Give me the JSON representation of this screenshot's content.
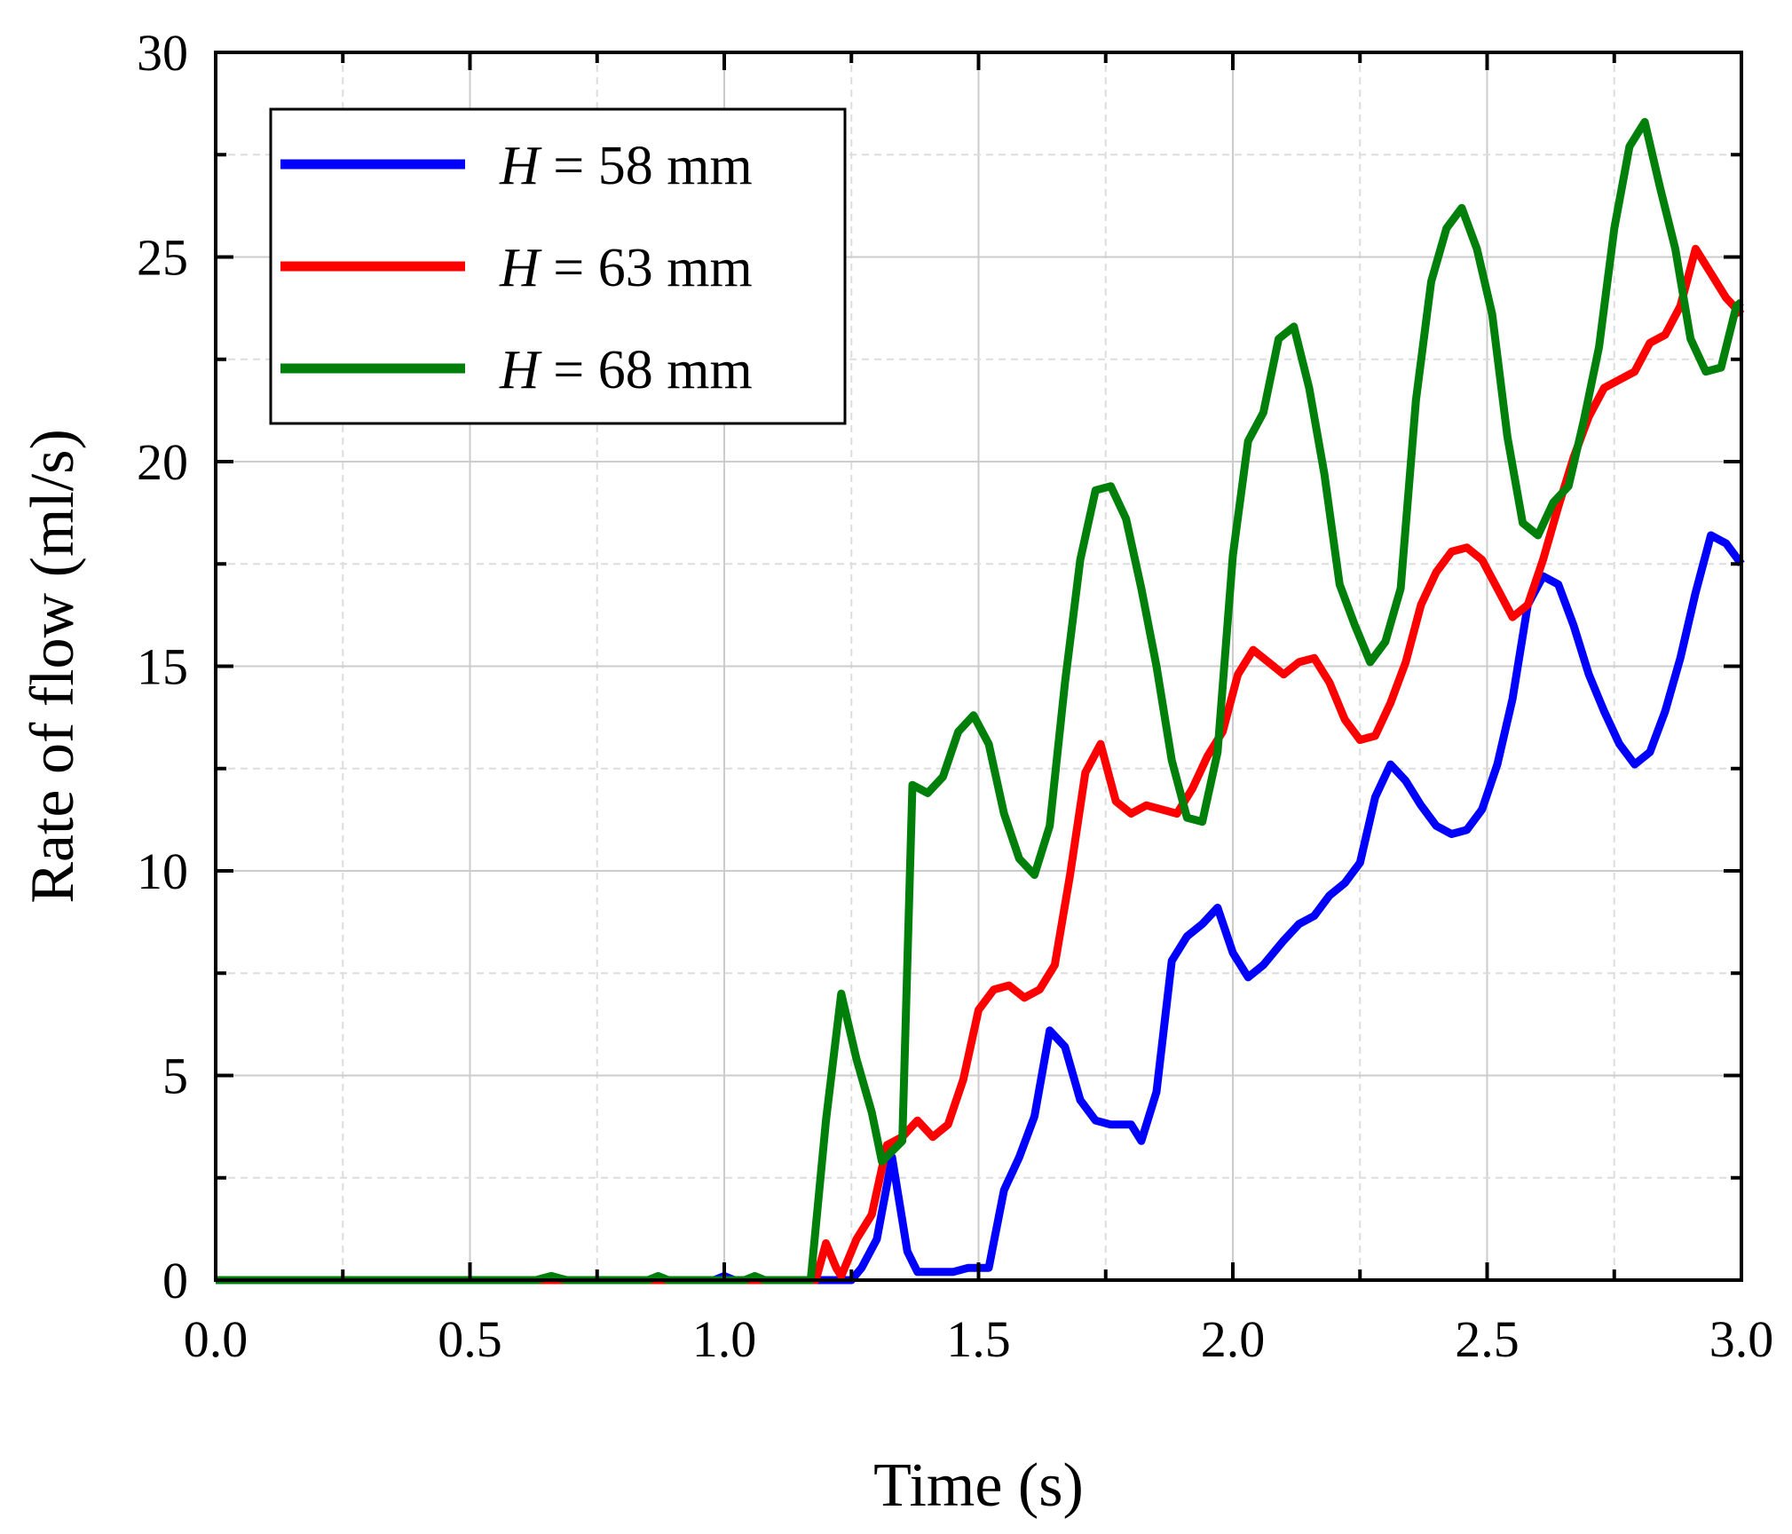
{
  "chart_data": {
    "type": "line",
    "title": "",
    "xlabel": "Time (s)",
    "ylabel": "Rate of flow (ml/s)",
    "xlim": [
      0,
      3
    ],
    "ylim": [
      0,
      30
    ],
    "x_ticks": [
      "0.0",
      "0.5",
      "1.0",
      "1.5",
      "2.0",
      "2.5",
      "3.0"
    ],
    "y_ticks": [
      "0",
      "5",
      "10",
      "15",
      "20",
      "25",
      "30"
    ],
    "grid": true,
    "legend_position": "top-left",
    "series": [
      {
        "name": "H = 58 mm",
        "var": "H",
        "rest": " = 58 mm",
        "color": "#0000ff",
        "points": [
          [
            0,
            0
          ],
          [
            0.25,
            0
          ],
          [
            0.5,
            0
          ],
          [
            0.75,
            0
          ],
          [
            0.98,
            0
          ],
          [
            1.0,
            0.1
          ],
          [
            1.02,
            0
          ],
          [
            1.1,
            0
          ],
          [
            1.2,
            0
          ],
          [
            1.25,
            0
          ],
          [
            1.27,
            0.3
          ],
          [
            1.3,
            1.0
          ],
          [
            1.33,
            3.0
          ],
          [
            1.36,
            0.7
          ],
          [
            1.38,
            0.2
          ],
          [
            1.42,
            0.2
          ],
          [
            1.45,
            0.2
          ],
          [
            1.48,
            0.3
          ],
          [
            1.52,
            0.3
          ],
          [
            1.55,
            2.2
          ],
          [
            1.58,
            3.0
          ],
          [
            1.61,
            4.0
          ],
          [
            1.64,
            6.1
          ],
          [
            1.67,
            5.7
          ],
          [
            1.7,
            4.4
          ],
          [
            1.73,
            3.9
          ],
          [
            1.76,
            3.8
          ],
          [
            1.8,
            3.8
          ],
          [
            1.82,
            3.4
          ],
          [
            1.85,
            4.6
          ],
          [
            1.88,
            7.8
          ],
          [
            1.91,
            8.4
          ],
          [
            1.94,
            8.7
          ],
          [
            1.97,
            9.1
          ],
          [
            2.0,
            8.0
          ],
          [
            2.03,
            7.4
          ],
          [
            2.06,
            7.7
          ],
          [
            2.1,
            8.3
          ],
          [
            2.13,
            8.7
          ],
          [
            2.16,
            8.9
          ],
          [
            2.19,
            9.4
          ],
          [
            2.22,
            9.7
          ],
          [
            2.25,
            10.2
          ],
          [
            2.28,
            11.8
          ],
          [
            2.31,
            12.6
          ],
          [
            2.34,
            12.2
          ],
          [
            2.37,
            11.6
          ],
          [
            2.4,
            11.1
          ],
          [
            2.43,
            10.9
          ],
          [
            2.46,
            11.0
          ],
          [
            2.49,
            11.5
          ],
          [
            2.52,
            12.6
          ],
          [
            2.55,
            14.2
          ],
          [
            2.58,
            16.5
          ],
          [
            2.61,
            17.2
          ],
          [
            2.64,
            17.0
          ],
          [
            2.67,
            16.0
          ],
          [
            2.7,
            14.8
          ],
          [
            2.73,
            13.9
          ],
          [
            2.76,
            13.1
          ],
          [
            2.79,
            12.6
          ],
          [
            2.82,
            12.9
          ],
          [
            2.85,
            13.9
          ],
          [
            2.88,
            15.2
          ],
          [
            2.91,
            16.8
          ],
          [
            2.94,
            18.2
          ],
          [
            2.97,
            18.0
          ],
          [
            3.0,
            17.5
          ]
        ]
      },
      {
        "name": "H = 63 mm",
        "var": "H",
        "rest": " = 63 mm",
        "color": "#ff0000",
        "points": [
          [
            0,
            0
          ],
          [
            0.5,
            0
          ],
          [
            1.0,
            0
          ],
          [
            1.18,
            0
          ],
          [
            1.2,
            0.9
          ],
          [
            1.22,
            0.3
          ],
          [
            1.23,
            0.1
          ],
          [
            1.26,
            1.0
          ],
          [
            1.29,
            1.6
          ],
          [
            1.32,
            3.3
          ],
          [
            1.35,
            3.5
          ],
          [
            1.38,
            3.9
          ],
          [
            1.41,
            3.5
          ],
          [
            1.44,
            3.8
          ],
          [
            1.47,
            4.9
          ],
          [
            1.5,
            6.6
          ],
          [
            1.53,
            7.1
          ],
          [
            1.56,
            7.2
          ],
          [
            1.59,
            6.9
          ],
          [
            1.62,
            7.1
          ],
          [
            1.65,
            7.7
          ],
          [
            1.68,
            9.9
          ],
          [
            1.71,
            12.4
          ],
          [
            1.74,
            13.1
          ],
          [
            1.77,
            11.7
          ],
          [
            1.8,
            11.4
          ],
          [
            1.83,
            11.6
          ],
          [
            1.86,
            11.5
          ],
          [
            1.89,
            11.4
          ],
          [
            1.92,
            12.0
          ],
          [
            1.95,
            12.8
          ],
          [
            1.98,
            13.4
          ],
          [
            2.01,
            14.8
          ],
          [
            2.04,
            15.4
          ],
          [
            2.07,
            15.1
          ],
          [
            2.1,
            14.8
          ],
          [
            2.13,
            15.1
          ],
          [
            2.16,
            15.2
          ],
          [
            2.19,
            14.6
          ],
          [
            2.22,
            13.7
          ],
          [
            2.25,
            13.2
          ],
          [
            2.28,
            13.3
          ],
          [
            2.31,
            14.1
          ],
          [
            2.34,
            15.1
          ],
          [
            2.37,
            16.5
          ],
          [
            2.4,
            17.3
          ],
          [
            2.43,
            17.8
          ],
          [
            2.46,
            17.9
          ],
          [
            2.49,
            17.6
          ],
          [
            2.52,
            16.9
          ],
          [
            2.55,
            16.2
          ],
          [
            2.58,
            16.5
          ],
          [
            2.61,
            17.6
          ],
          [
            2.64,
            18.9
          ],
          [
            2.67,
            20.1
          ],
          [
            2.7,
            21.1
          ],
          [
            2.73,
            21.8
          ],
          [
            2.76,
            22.0
          ],
          [
            2.79,
            22.2
          ],
          [
            2.82,
            22.9
          ],
          [
            2.85,
            23.1
          ],
          [
            2.88,
            23.8
          ],
          [
            2.91,
            25.2
          ],
          [
            2.94,
            24.6
          ],
          [
            2.97,
            24.0
          ],
          [
            3.0,
            23.6
          ]
        ]
      },
      {
        "name": "H = 68 mm",
        "var": "H",
        "rest": " = 68 mm",
        "color": "#00800a",
        "points": [
          [
            0,
            0
          ],
          [
            0.25,
            0
          ],
          [
            0.5,
            0
          ],
          [
            0.63,
            0
          ],
          [
            0.66,
            0.1
          ],
          [
            0.69,
            0
          ],
          [
            0.85,
            0
          ],
          [
            0.87,
            0.1
          ],
          [
            0.89,
            0
          ],
          [
            1.0,
            0
          ],
          [
            1.04,
            0
          ],
          [
            1.06,
            0.1
          ],
          [
            1.08,
            0
          ],
          [
            1.17,
            0
          ],
          [
            1.2,
            3.9
          ],
          [
            1.23,
            7.0
          ],
          [
            1.26,
            5.4
          ],
          [
            1.29,
            4.1
          ],
          [
            1.31,
            2.9
          ],
          [
            1.35,
            3.4
          ],
          [
            1.37,
            12.1
          ],
          [
            1.4,
            11.9
          ],
          [
            1.43,
            12.3
          ],
          [
            1.46,
            13.4
          ],
          [
            1.49,
            13.8
          ],
          [
            1.52,
            13.1
          ],
          [
            1.55,
            11.4
          ],
          [
            1.58,
            10.3
          ],
          [
            1.61,
            9.9
          ],
          [
            1.64,
            11.1
          ],
          [
            1.67,
            14.6
          ],
          [
            1.7,
            17.6
          ],
          [
            1.73,
            19.3
          ],
          [
            1.76,
            19.4
          ],
          [
            1.79,
            18.6
          ],
          [
            1.82,
            16.9
          ],
          [
            1.85,
            15.0
          ],
          [
            1.88,
            12.7
          ],
          [
            1.91,
            11.3
          ],
          [
            1.94,
            11.2
          ],
          [
            1.97,
            12.9
          ],
          [
            2.0,
            17.7
          ],
          [
            2.03,
            20.5
          ],
          [
            2.06,
            21.2
          ],
          [
            2.09,
            23.0
          ],
          [
            2.12,
            23.3
          ],
          [
            2.15,
            21.8
          ],
          [
            2.18,
            19.7
          ],
          [
            2.21,
            17.0
          ],
          [
            2.24,
            16.0
          ],
          [
            2.27,
            15.1
          ],
          [
            2.3,
            15.6
          ],
          [
            2.33,
            16.9
          ],
          [
            2.36,
            21.5
          ],
          [
            2.39,
            24.4
          ],
          [
            2.42,
            25.7
          ],
          [
            2.45,
            26.2
          ],
          [
            2.48,
            25.2
          ],
          [
            2.51,
            23.6
          ],
          [
            2.54,
            20.6
          ],
          [
            2.57,
            18.5
          ],
          [
            2.6,
            18.2
          ],
          [
            2.63,
            19.0
          ],
          [
            2.66,
            19.4
          ],
          [
            2.69,
            21.0
          ],
          [
            2.72,
            22.8
          ],
          [
            2.75,
            25.7
          ],
          [
            2.78,
            27.7
          ],
          [
            2.81,
            28.3
          ],
          [
            2.84,
            26.7
          ],
          [
            2.87,
            25.2
          ],
          [
            2.9,
            23.0
          ],
          [
            2.93,
            22.2
          ],
          [
            2.96,
            22.3
          ],
          [
            2.99,
            23.8
          ],
          [
            3.0,
            23.9
          ]
        ]
      }
    ]
  }
}
